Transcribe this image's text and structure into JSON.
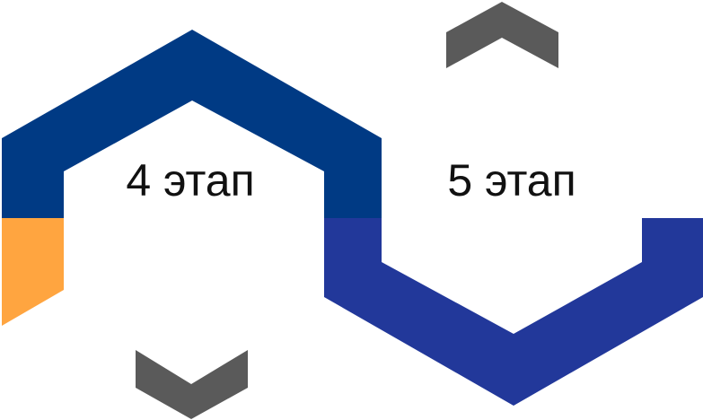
{
  "stages": [
    {
      "label": "4 этап",
      "color": "#003A84",
      "accent_color": "#FFA540"
    },
    {
      "label": "5 этап",
      "color": "#22389A"
    }
  ],
  "arrows": [
    {
      "name": "chevron-up-icon",
      "direction": "up",
      "color": "#5A5A5A"
    },
    {
      "name": "chevron-down-icon",
      "direction": "down",
      "color": "#5A5A5A"
    }
  ]
}
